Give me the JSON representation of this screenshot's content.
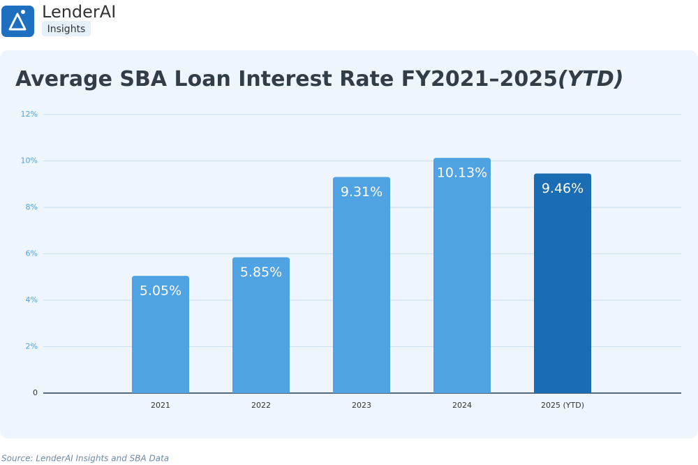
{
  "brand": {
    "name": "LenderAI",
    "tag": "Insights"
  },
  "chart_data": {
    "type": "bar",
    "title": "Average SBA Loan Interest Rate FY2021–2025",
    "title_note": "(YTD)",
    "categories": [
      "2021",
      "2022",
      "2023",
      "2024",
      "2025 (YTD)"
    ],
    "values": [
      5.05,
      5.85,
      9.31,
      10.13,
      9.46
    ],
    "value_labels": [
      "5.05%",
      "5.85%",
      "9.31%",
      "10.13%",
      "9.46%"
    ],
    "colors": [
      "#4fa3e3",
      "#4fa3e3",
      "#4fa3e3",
      "#4fa3e3",
      "#1a6db3"
    ],
    "ylim": [
      0,
      12
    ],
    "yticks": [
      0,
      {
        "value": 2,
        "label": "2%"
      },
      {
        "value": 4,
        "label": "4%"
      },
      {
        "value": 6,
        "label": "6%"
      },
      {
        "value": 8,
        "label": "8%"
      },
      {
        "value": 10,
        "label": "10%"
      },
      {
        "value": 12,
        "label": "12%"
      }
    ],
    "grid": true,
    "source": "Source: LenderAI Insights and SBA Data"
  }
}
